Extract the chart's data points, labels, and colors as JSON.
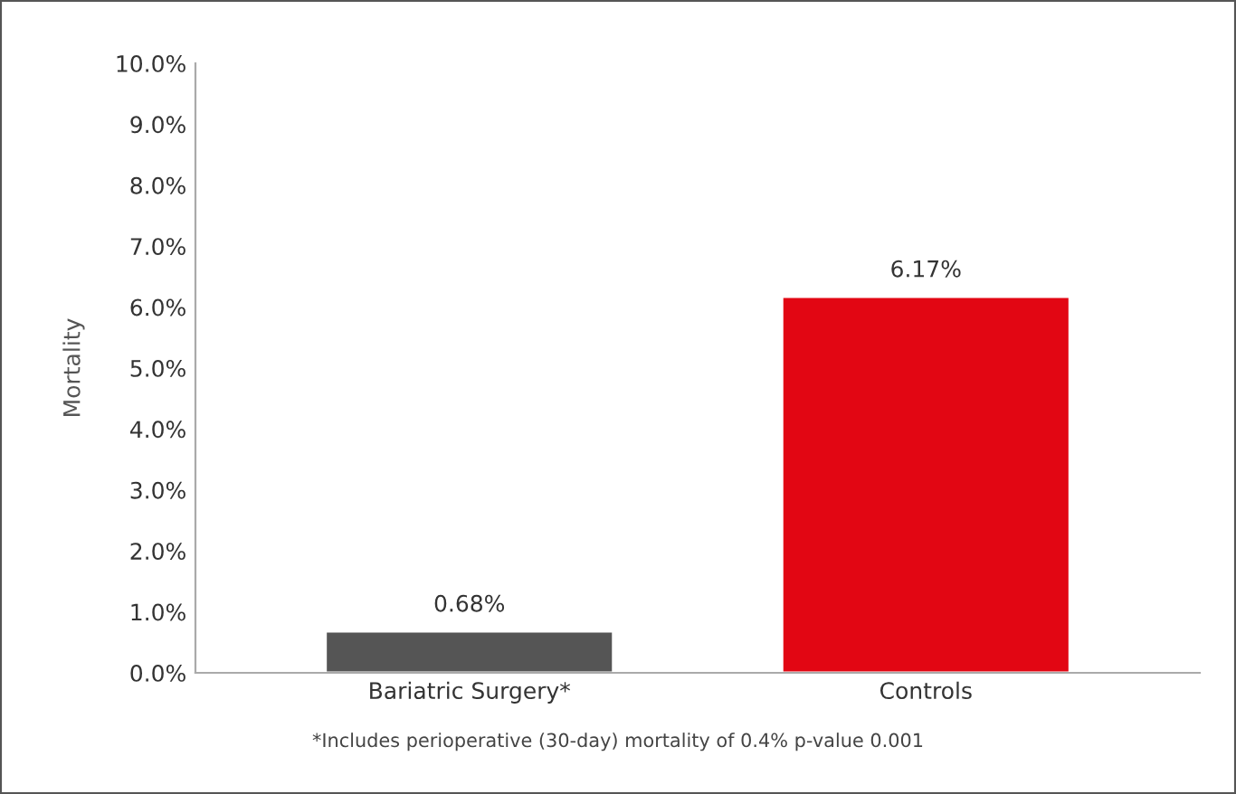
{
  "chart_data": {
    "type": "bar",
    "ylabel": "Mortality",
    "categories": [
      "Bariatric Surgery*",
      "Controls"
    ],
    "values": [
      0.68,
      6.17
    ],
    "colors": [
      "#555555",
      "#e20613"
    ],
    "value_labels": [
      "0.68%",
      "6.17%"
    ],
    "ylim": [
      0,
      10
    ],
    "yticks": [
      {
        "value": 0,
        "label": "0.0%"
      },
      {
        "value": 1,
        "label": "1.0%"
      },
      {
        "value": 2,
        "label": "2.0%"
      },
      {
        "value": 3,
        "label": "3.0%"
      },
      {
        "value": 4,
        "label": "4.0%"
      },
      {
        "value": 5,
        "label": "5.0%"
      },
      {
        "value": 6,
        "label": "6.0%"
      },
      {
        "value": 7,
        "label": "7.0%"
      },
      {
        "value": 8,
        "label": "8.0%"
      },
      {
        "value": 9,
        "label": "9.0%"
      },
      {
        "value": 10,
        "label": "10.0%"
      }
    ],
    "grid": false,
    "legend": false,
    "annotations": [
      "*Includes perioperative (30-day) mortality of 0.4% p-value 0.001"
    ]
  }
}
